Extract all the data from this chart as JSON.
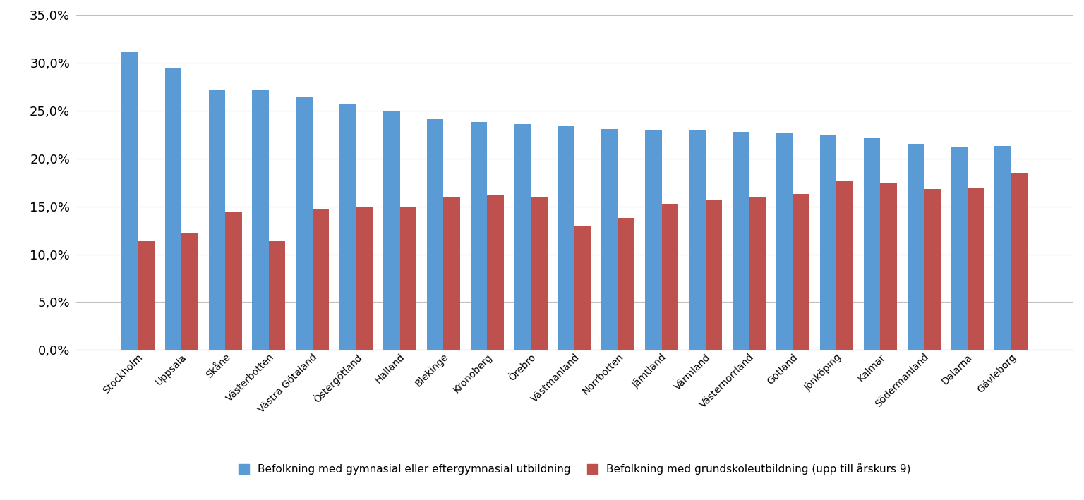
{
  "categories": [
    "Stockholm",
    "Uppsala",
    "Skåne",
    "Västerbotten",
    "Västra Götaland",
    "Östergötland",
    "Halland",
    "Blekinge",
    "Kronoberg",
    "Örebro",
    "Västmanland",
    "Norrbotten",
    "Jämtland",
    "Värmland",
    "Västernorrland",
    "Gotland",
    "Jönköping",
    "Kalmar",
    "Södermanland",
    "Dalarna",
    "Gävleborg"
  ],
  "blue_values": [
    0.311,
    0.295,
    0.271,
    0.271,
    0.264,
    0.257,
    0.249,
    0.241,
    0.238,
    0.236,
    0.234,
    0.231,
    0.23,
    0.229,
    0.228,
    0.227,
    0.225,
    0.222,
    0.215,
    0.212,
    0.213
  ],
  "red_values": [
    0.114,
    0.122,
    0.145,
    0.114,
    0.147,
    0.15,
    0.15,
    0.16,
    0.162,
    0.16,
    0.13,
    0.138,
    0.153,
    0.157,
    0.16,
    0.163,
    0.177,
    0.175,
    0.168,
    0.169,
    0.185
  ],
  "blue_color": "#5B9BD5",
  "red_color": "#BE514D",
  "legend_blue": "Befolkning med gymnasial eller eftergymnasial utbildning",
  "legend_red": "Befolkning med grundskoleutbildning (upp till årskurs 9)",
  "ylim": [
    0,
    0.35
  ],
  "yticks": [
    0.0,
    0.05,
    0.1,
    0.15,
    0.2,
    0.25,
    0.3,
    0.35
  ],
  "background_color": "#FFFFFF",
  "grid_color": "#C0C0C0",
  "bar_width": 0.38,
  "fontsize_ytick": 13,
  "fontsize_xtick": 10,
  "fontsize_legend": 11
}
